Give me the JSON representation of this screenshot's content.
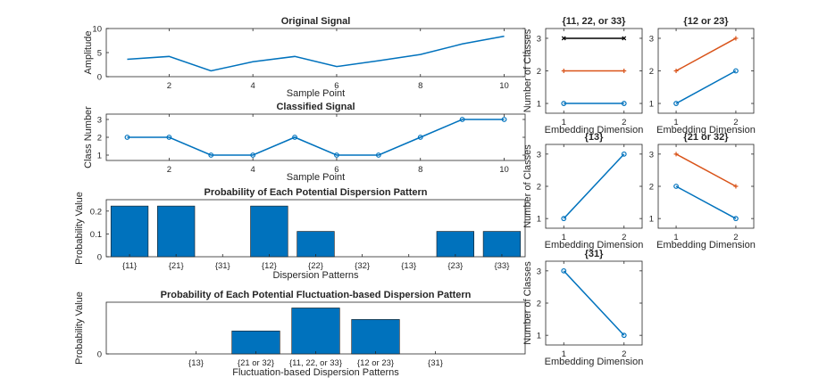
{
  "chart_data": [
    {
      "id": "original",
      "type": "line",
      "title": "Original Signal",
      "xlabel": "Sample Point",
      "ylabel": "Amplitude",
      "x": [
        1,
        2,
        3,
        4,
        5,
        6,
        7,
        8,
        9,
        10
      ],
      "values": [
        3.6,
        4.2,
        1.2,
        3.1,
        4.2,
        2.1,
        3.3,
        4.6,
        6.8,
        8.4
      ],
      "xlim": [
        0.5,
        10.5
      ],
      "ylim": [
        0,
        10
      ],
      "xticks": [
        2,
        4,
        6,
        8,
        10
      ],
      "yticks": [
        0,
        5,
        10
      ],
      "color": "#0072BD",
      "markers": false
    },
    {
      "id": "classified",
      "type": "line",
      "title": "Classified Signal",
      "xlabel": "Sample Point",
      "ylabel": "Class Number",
      "x": [
        1,
        2,
        3,
        4,
        5,
        6,
        7,
        8,
        9,
        10
      ],
      "values": [
        2,
        2,
        1,
        1,
        2,
        1,
        1,
        2,
        3,
        3
      ],
      "xlim": [
        0.5,
        10.5
      ],
      "ylim": [
        0.7,
        3.3
      ],
      "xticks": [
        2,
        4,
        6,
        8,
        10
      ],
      "yticks": [
        1,
        2,
        3
      ],
      "color": "#0072BD",
      "markers": true
    },
    {
      "id": "dispersion",
      "type": "bar",
      "title": "Probability of Each Potential Dispersion Pattern",
      "xlabel": "Dispersion Patterns",
      "ylabel": "Probability Value",
      "categories": [
        "{11}",
        "{21}",
        "{31}",
        "{12}",
        "{22}",
        "{32}",
        "{13}",
        "{23}",
        "{33}"
      ],
      "values": [
        0.2222,
        0.2222,
        0,
        0.2222,
        0.1111,
        0,
        0,
        0.1111,
        0.1111
      ],
      "ylim": [
        0,
        0.25
      ],
      "yticks": [
        0,
        0.1,
        0.2
      ],
      "color": "#0072BD"
    },
    {
      "id": "fluctuation",
      "type": "bar",
      "title": "Probability of Each Potential Fluctuation-based Dispersion Pattern",
      "xlabel": "Fluctuation-based Dispersion Patterns",
      "ylabel": "Probability Value",
      "categories": [
        "",
        "{13}",
        "{21 or 32}",
        "{11, 22, or 33}",
        "{12 or 23}",
        "{31}",
        ""
      ],
      "values": [
        0,
        0,
        0.2222,
        0.4444,
        0.3333,
        0,
        0
      ],
      "ylim": [
        0,
        0.5
      ],
      "yticks": [
        0
      ],
      "color": "#0072BD"
    },
    {
      "id": "p112233",
      "type": "line",
      "title": "{11, 22, or 33}",
      "xlabel": "Embedding Dimension",
      "ylabel": "Number of Classes",
      "x": [
        1,
        2
      ],
      "series": [
        {
          "values": [
            3,
            3
          ],
          "color": "#000000",
          "marker": "x"
        },
        {
          "values": [
            2,
            2
          ],
          "color": "#D95319",
          "marker": "+"
        },
        {
          "values": [
            1,
            1
          ],
          "color": "#0072BD",
          "marker": "o"
        }
      ],
      "xlim": [
        0.7,
        2.3
      ],
      "ylim": [
        0.7,
        3.3
      ],
      "xticks": [
        1,
        2
      ],
      "yticks": [
        1,
        2,
        3
      ]
    },
    {
      "id": "p1223",
      "type": "line",
      "title": "{12 or 23}",
      "xlabel": "Embedding Dimension",
      "ylabel": "",
      "x": [
        1,
        2
      ],
      "series": [
        {
          "values": [
            2,
            3
          ],
          "color": "#D95319",
          "marker": "+"
        },
        {
          "values": [
            1,
            2
          ],
          "color": "#0072BD",
          "marker": "o"
        }
      ],
      "xlim": [
        0.7,
        2.3
      ],
      "ylim": [
        0.7,
        3.3
      ],
      "xticks": [
        1,
        2
      ],
      "yticks": [
        1,
        2,
        3
      ]
    },
    {
      "id": "p13",
      "type": "line",
      "title": "{13}",
      "xlabel": "Embedding Dimension",
      "ylabel": "Number of Classes",
      "x": [
        1,
        2
      ],
      "series": [
        {
          "values": [
            1,
            3
          ],
          "color": "#0072BD",
          "marker": "o"
        }
      ],
      "xlim": [
        0.7,
        2.3
      ],
      "ylim": [
        0.7,
        3.3
      ],
      "xticks": [
        1,
        2
      ],
      "yticks": [
        1,
        2,
        3
      ]
    },
    {
      "id": "p2132",
      "type": "line",
      "title": "{21 or 32}",
      "xlabel": "Embedding Dimension",
      "ylabel": "",
      "x": [
        1,
        2
      ],
      "series": [
        {
          "values": [
            3,
            2
          ],
          "color": "#D95319",
          "marker": "+"
        },
        {
          "values": [
            2,
            1
          ],
          "color": "#0072BD",
          "marker": "o"
        }
      ],
      "xlim": [
        0.7,
        2.3
      ],
      "ylim": [
        0.7,
        3.3
      ],
      "xticks": [
        1,
        2
      ],
      "yticks": [
        1,
        2,
        3
      ]
    },
    {
      "id": "p31",
      "type": "line",
      "title": "{31}",
      "xlabel": "Embedding Dimension",
      "ylabel": "Number of Classes",
      "x": [
        1,
        2
      ],
      "series": [
        {
          "values": [
            3,
            1
          ],
          "color": "#0072BD",
          "marker": "o"
        }
      ],
      "xlim": [
        0.7,
        2.3
      ],
      "ylim": [
        0.7,
        3.3
      ],
      "xticks": [
        1,
        2
      ],
      "yticks": [
        1,
        2,
        3
      ]
    }
  ]
}
